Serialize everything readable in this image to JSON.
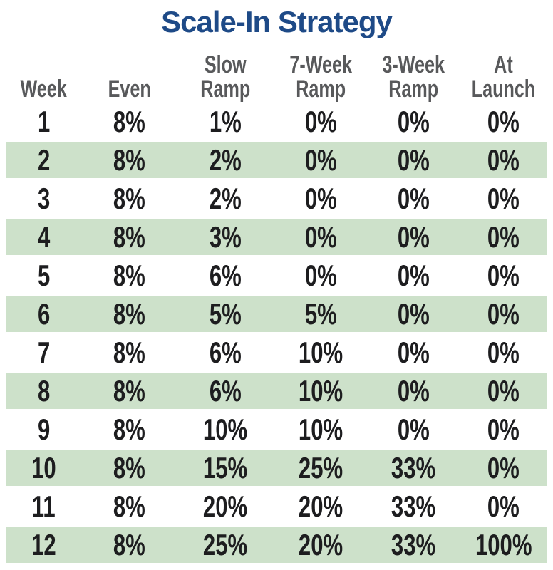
{
  "title": "Scale-In Strategy",
  "display": {
    "headers": [
      "Week",
      "Even",
      "Slow\nRamp",
      "7-Week\nRamp",
      "3-Week\nRamp",
      "At\nLaunch"
    ]
  },
  "chart_data": {
    "type": "table",
    "title": "Scale-In Strategy",
    "columns": [
      "Week",
      "Even",
      "Slow Ramp",
      "7-Week Ramp",
      "3-Week Ramp",
      "At Launch"
    ],
    "rows": [
      [
        "1",
        "8%",
        "1%",
        "0%",
        "0%",
        "0%"
      ],
      [
        "2",
        "8%",
        "2%",
        "0%",
        "0%",
        "0%"
      ],
      [
        "3",
        "8%",
        "2%",
        "0%",
        "0%",
        "0%"
      ],
      [
        "4",
        "8%",
        "3%",
        "0%",
        "0%",
        "0%"
      ],
      [
        "5",
        "8%",
        "6%",
        "0%",
        "0%",
        "0%"
      ],
      [
        "6",
        "8%",
        "5%",
        "5%",
        "0%",
        "0%"
      ],
      [
        "7",
        "8%",
        "6%",
        "10%",
        "0%",
        "0%"
      ],
      [
        "8",
        "8%",
        "6%",
        "10%",
        "0%",
        "0%"
      ],
      [
        "9",
        "8%",
        "10%",
        "10%",
        "0%",
        "0%"
      ],
      [
        "10",
        "8%",
        "15%",
        "25%",
        "33%",
        "0%"
      ],
      [
        "11",
        "8%",
        "20%",
        "20%",
        "33%",
        "0%"
      ],
      [
        "12",
        "8%",
        "25%",
        "20%",
        "33%",
        "100%"
      ]
    ],
    "layout": {
      "banded_rows": "even weeks shaded green",
      "header_lines": 2,
      "grid": false
    }
  },
  "colors": {
    "title_blue": "#1e4a87",
    "header_gray": "#58595b",
    "row_green": "#cde1ca",
    "data_black": "#1d1d1f"
  }
}
